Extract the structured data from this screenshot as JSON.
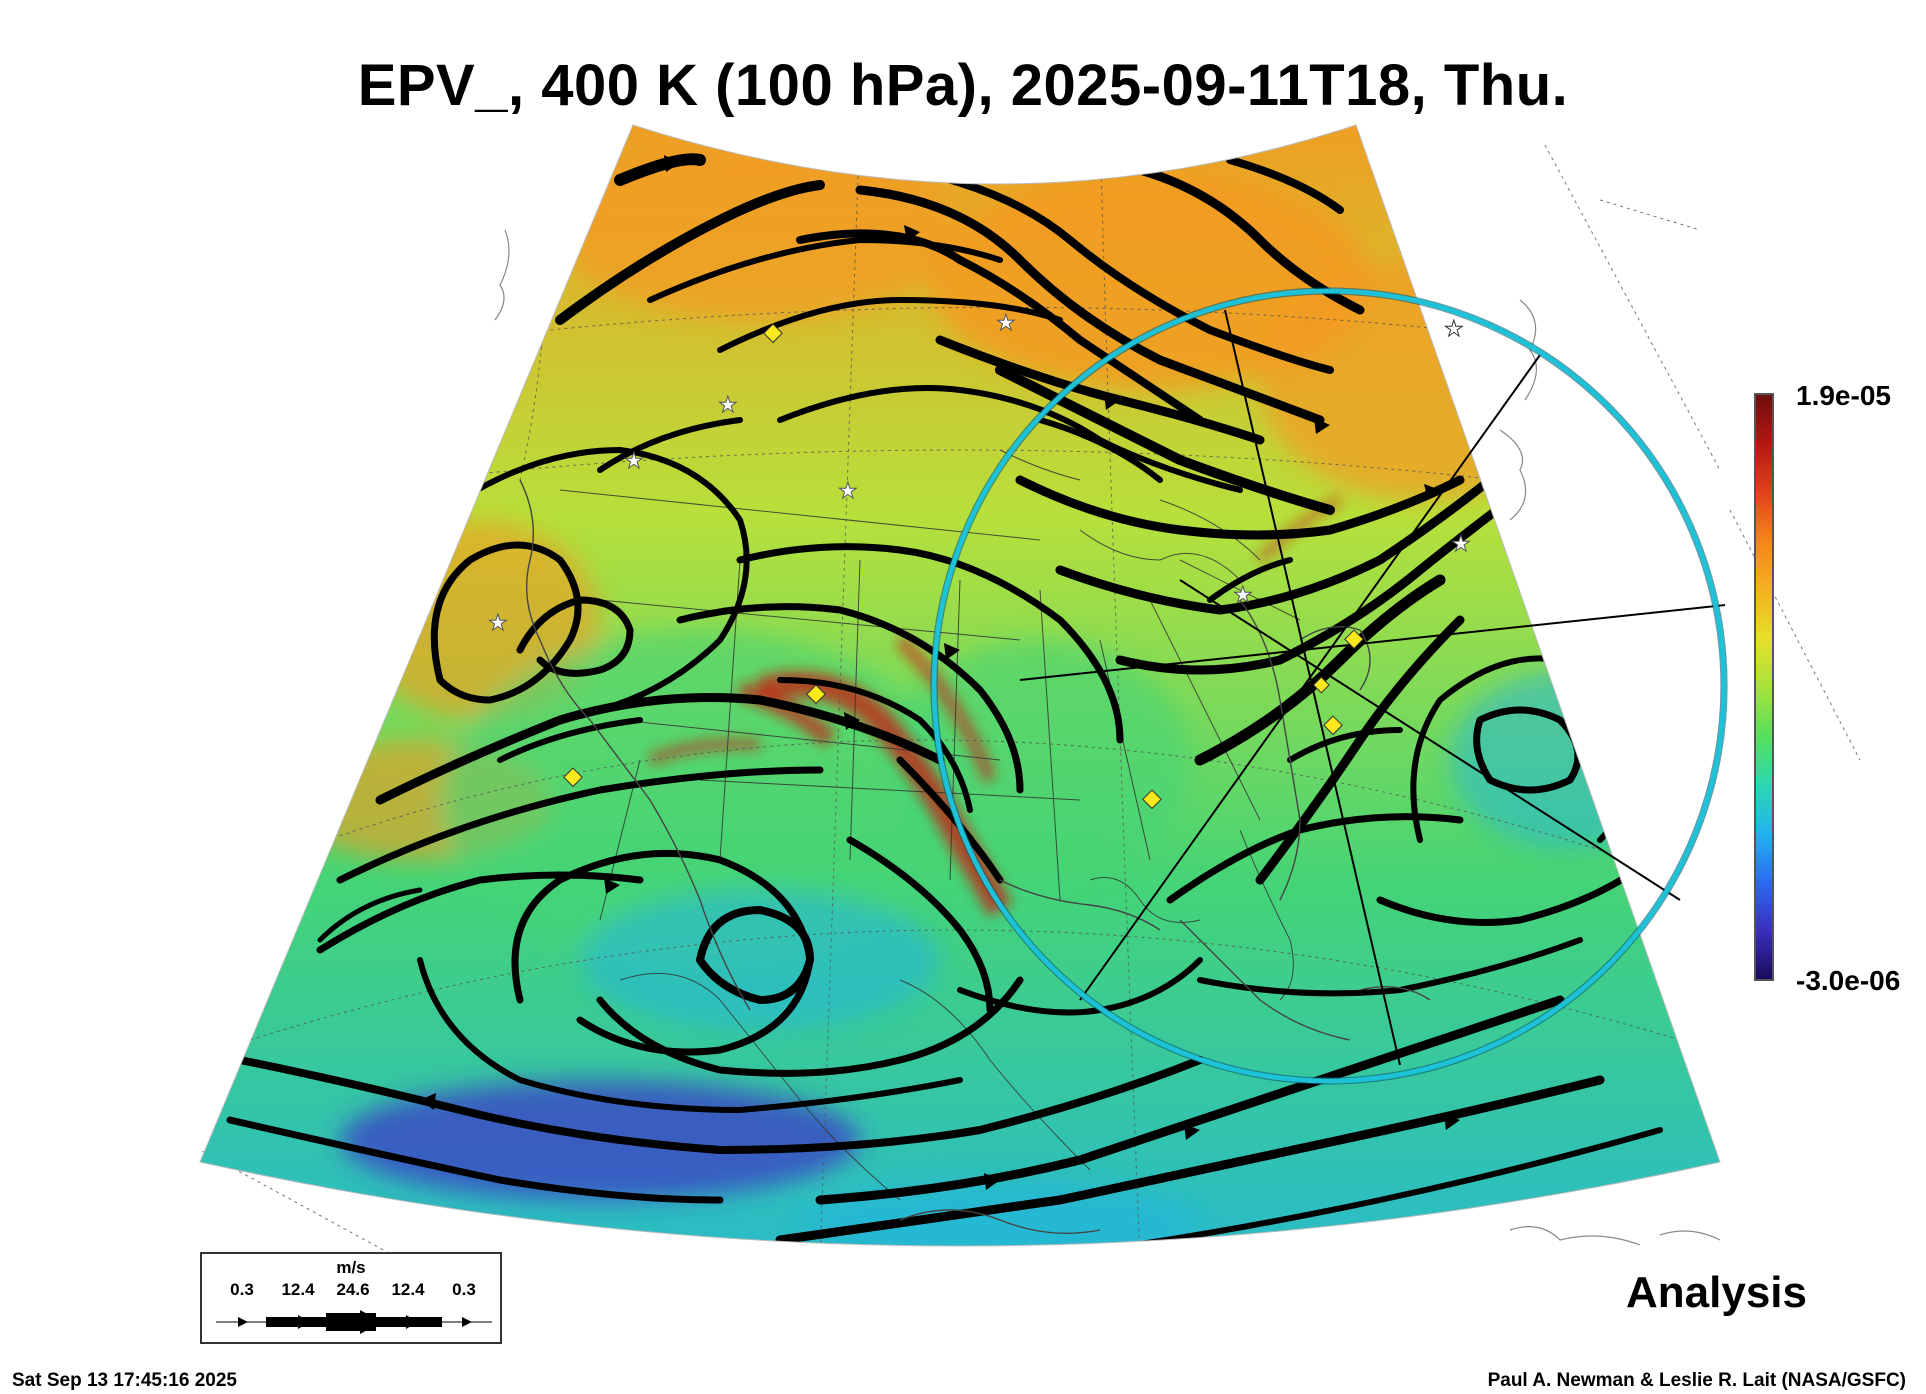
{
  "title": "EPV_, 400 K (100 hPa), 2025-09-11T18, Thu.",
  "colorbar": {
    "max_label": "1.9e-05",
    "min_label": "-3.0e-06",
    "colors": [
      "#1a0b5e",
      "#3a2fbd",
      "#2a6cf0",
      "#22b4ee",
      "#2bd8b0",
      "#57e05a",
      "#a8e23a",
      "#e6e02a",
      "#f4b021",
      "#f5851a",
      "#e0431a",
      "#b31712",
      "#6e0d0d"
    ]
  },
  "map": {
    "field_colors": {
      "north_field": "#f39a22",
      "mid_field": "#b7e03b",
      "south_field": "#45d476",
      "tropics": "#22b4e0",
      "high_pv_band": "#c81d14",
      "low_pv_spot": "#3b35c8"
    },
    "circle_color": "#1ec2d8",
    "streamline_color": "#000000",
    "marker_diamond_color": "#f8e81c",
    "marker_star_color": "#ffffff"
  },
  "legend": {
    "units": "m/s",
    "ticks": [
      "0.3",
      "12.4",
      "24.6",
      "12.4",
      "0.3"
    ]
  },
  "annotation": "Analysis",
  "timestamp": "Sat Sep 13 17:45:16 2025",
  "credit": "Paul A. Newman & Leslie R. Lait (NASA/GSFC)"
}
